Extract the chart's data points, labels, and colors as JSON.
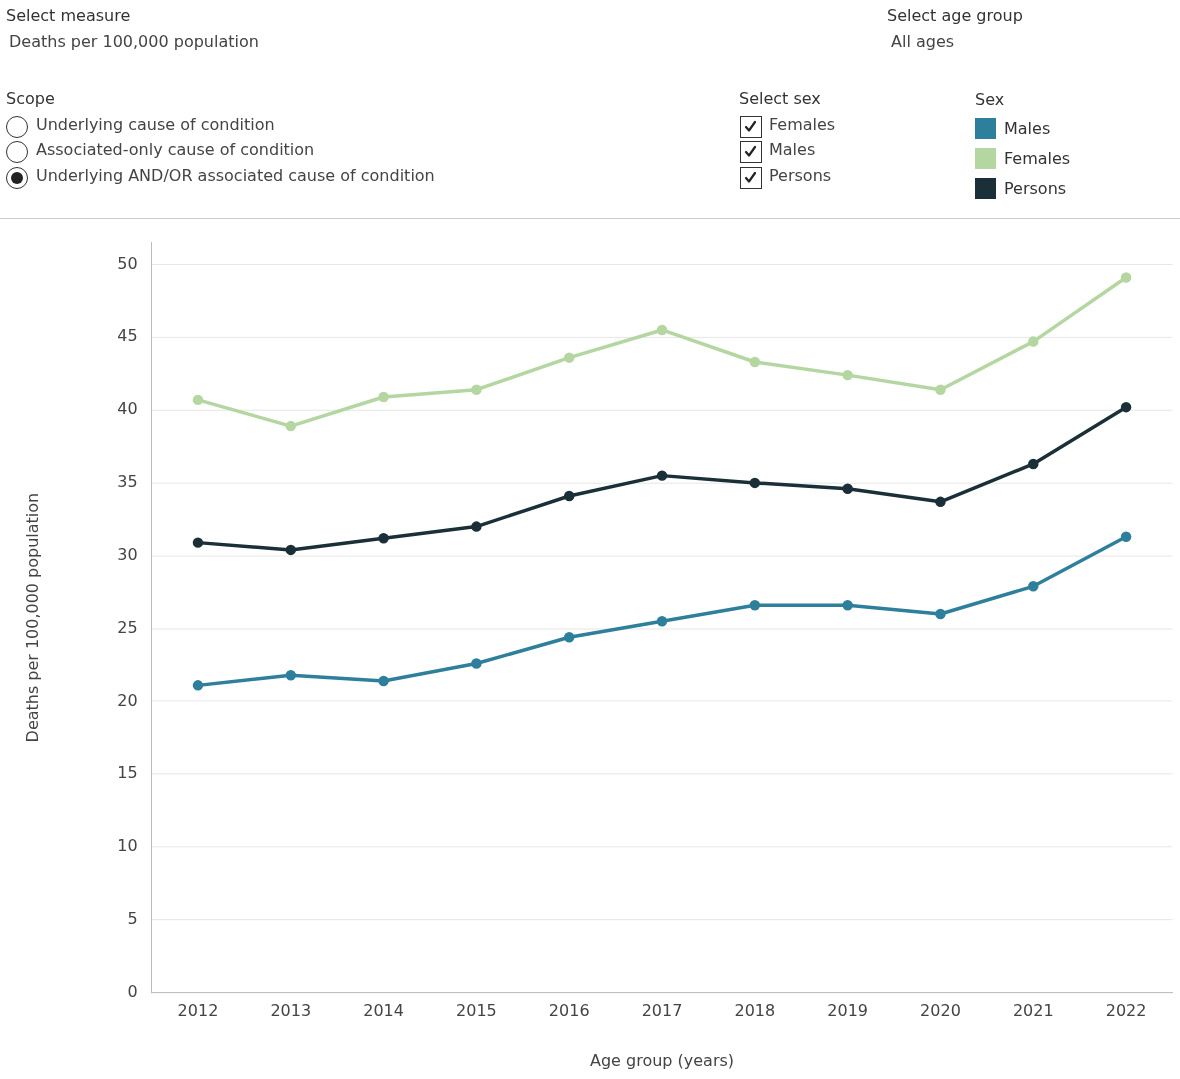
{
  "chart_data": {
    "type": "line",
    "xlabel": "Age group (years)",
    "ylabel": "Deaths per 100,000 population",
    "legend_title": "Sex",
    "legend": "top right",
    "grid": "y",
    "marker": "circle",
    "line_style": "solid",
    "categories": [
      "2012",
      "2013",
      "2014",
      "2015",
      "2016",
      "2017",
      "2018",
      "2019",
      "2020",
      "2021",
      "2022"
    ],
    "ylim": [
      0,
      51.5
    ],
    "yticks": [
      0,
      5,
      10,
      15,
      20,
      25,
      30,
      35,
      40,
      45,
      50
    ],
    "series": [
      {
        "name": "Males",
        "color": "#2e7f9b",
        "values": [
          21.1,
          21.8,
          21.4,
          22.6,
          24.4,
          25.5,
          26.6,
          26.6,
          26.0,
          27.9,
          31.3
        ]
      },
      {
        "name": "Females",
        "color": "#b4d6a1",
        "values": [
          40.7,
          38.9,
          40.9,
          41.4,
          43.6,
          45.5,
          43.3,
          42.4,
          41.4,
          44.7,
          49.1
        ]
      },
      {
        "name": "Persons",
        "color": "#1b2f38",
        "values": [
          30.9,
          30.4,
          31.2,
          32.0,
          34.1,
          35.5,
          35.0,
          34.6,
          33.7,
          36.3,
          40.2
        ]
      }
    ],
    "annotations": [
      "Select measure",
      "Deaths per 100,000 population",
      "Select age group",
      "All ages",
      "Scope",
      "Underlying cause of condition",
      "Associated-only cause of condition",
      "Underlying AND/OR associated cause of condition",
      "Select sex",
      "Females",
      "Males",
      "Persons"
    ]
  }
}
